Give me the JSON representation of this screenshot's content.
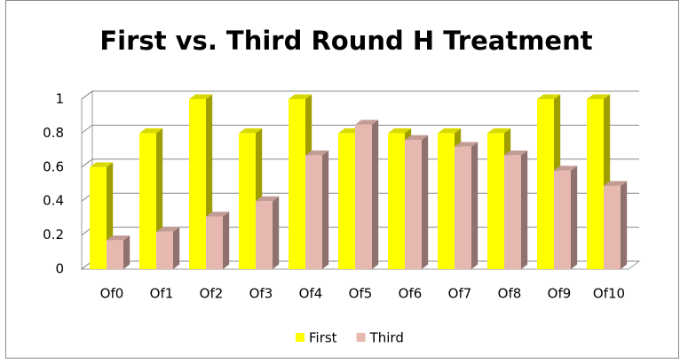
{
  "chart_data": {
    "type": "bar3d",
    "title": "First vs. Third Round H Treatment",
    "categories": [
      "Of0",
      "Of1",
      "Of2",
      "Of3",
      "Of4",
      "Of5",
      "Of6",
      "Of7",
      "Of8",
      "Of9",
      "Of10"
    ],
    "series": [
      {
        "name": "First",
        "color": "#ffff00",
        "values": [
          0.6,
          0.8,
          1,
          0.8,
          1,
          0.8,
          0.8,
          0.8,
          0.8,
          1,
          1
        ]
      },
      {
        "name": "Third",
        "color": "#e6b8b0",
        "values": [
          0.17,
          0.22,
          0.31,
          0.4,
          0.67,
          0.85,
          0.76,
          0.72,
          0.67,
          0.58,
          0.49
        ]
      }
    ],
    "ylim": [
      0,
      1
    ],
    "yticks": [
      0,
      0.2,
      0.4,
      0.6,
      0.8,
      1
    ],
    "grid": true,
    "legend": "bottom"
  }
}
